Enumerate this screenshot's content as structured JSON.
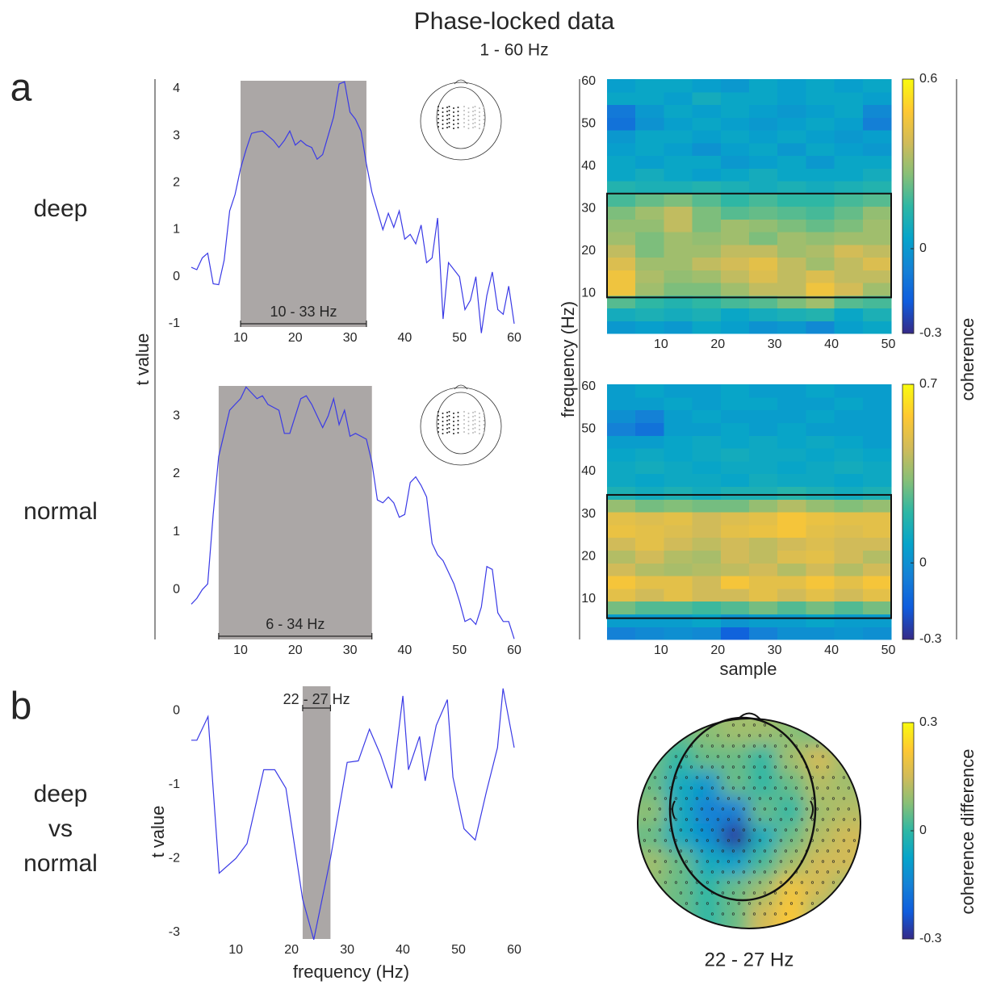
{
  "title": "Phase-locked data",
  "subtitle": "1 - 60 Hz",
  "panel_labels": [
    "a",
    "b"
  ],
  "row_labels": [
    "deep",
    "normal"
  ],
  "comparison_label": [
    "deep",
    "vs",
    "normal"
  ],
  "chart_data": [
    {
      "type": "line",
      "ylabel": "t value",
      "color": "#3a3ae6",
      "shade_color": "#aba7a6",
      "shade": [
        10,
        33
      ],
      "shade_label": "10 - 33 Hz",
      "xlim": [
        1,
        60
      ],
      "xticks": [
        10,
        20,
        30,
        40,
        50,
        60
      ],
      "ylim": [
        -1.07,
        4.17
      ],
      "yticks": [
        -1,
        0,
        1,
        2,
        3,
        4
      ],
      "x": [
        1,
        2,
        3,
        4,
        5,
        6,
        7,
        8,
        9,
        10,
        11,
        12,
        13,
        14,
        15,
        16,
        17,
        18,
        19,
        20,
        21,
        22,
        23,
        24,
        25,
        26,
        27,
        28,
        29,
        30,
        31,
        32,
        33,
        34,
        35,
        36,
        37,
        38,
        39,
        40,
        41,
        42,
        43,
        44,
        45,
        46,
        47,
        48,
        49,
        50,
        51,
        52,
        53,
        54,
        55,
        56,
        57,
        58,
        59,
        60
      ],
      "values": [
        0.2,
        0.15,
        0.4,
        0.5,
        -0.15,
        -0.17,
        0.35,
        1.4,
        1.75,
        2.3,
        2.7,
        3.05,
        3.08,
        3.1,
        3.0,
        2.9,
        2.75,
        2.9,
        3.1,
        2.8,
        2.9,
        2.8,
        2.75,
        2.5,
        2.6,
        3.0,
        3.4,
        4.1,
        4.15,
        3.5,
        3.35,
        3.1,
        2.4,
        1.8,
        1.4,
        1.0,
        1.35,
        1.05,
        1.4,
        0.8,
        0.9,
        0.7,
        1.1,
        0.3,
        0.4,
        1.25,
        -0.9,
        0.3,
        0.15,
        0.0,
        -0.7,
        -0.5,
        0.0,
        -1.2,
        -0.4,
        0.1,
        -0.7,
        -0.8,
        -0.2,
        -1.0
      ]
    },
    {
      "type": "line",
      "color": "#3a3ae6",
      "shade_color": "#aba7a6",
      "shade": [
        6,
        34
      ],
      "shade_label": "6 - 34 Hz",
      "xlim": [
        1,
        60
      ],
      "xticks": [
        10,
        20,
        30,
        40,
        50,
        60
      ],
      "ylim": [
        -0.86,
        3.52
      ],
      "yticks": [
        0,
        1,
        2,
        3
      ],
      "x": [
        1,
        2,
        3,
        4,
        5,
        6,
        7,
        8,
        9,
        10,
        11,
        12,
        13,
        14,
        15,
        16,
        17,
        18,
        19,
        20,
        21,
        22,
        23,
        24,
        25,
        26,
        27,
        28,
        29,
        30,
        31,
        32,
        33,
        34,
        35,
        36,
        37,
        38,
        39,
        40,
        41,
        42,
        43,
        44,
        45,
        46,
        47,
        48,
        49,
        50,
        51,
        52,
        53,
        54,
        55,
        56,
        57,
        58,
        59,
        60
      ],
      "values": [
        -0.25,
        -0.15,
        0.0,
        0.1,
        1.3,
        2.3,
        2.7,
        3.1,
        3.2,
        3.3,
        3.5,
        3.4,
        3.3,
        3.35,
        3.2,
        3.15,
        3.1,
        2.7,
        2.7,
        3.0,
        3.3,
        3.35,
        3.2,
        3.0,
        2.8,
        3.0,
        3.3,
        2.85,
        3.1,
        2.65,
        2.7,
        2.65,
        2.6,
        2.2,
        1.55,
        1.5,
        1.6,
        1.5,
        1.25,
        1.3,
        1.85,
        1.95,
        1.8,
        1.6,
        0.8,
        0.6,
        0.5,
        0.3,
        0.1,
        -0.2,
        -0.55,
        -0.5,
        -0.6,
        -0.3,
        0.4,
        0.35,
        -0.4,
        -0.55,
        -0.55,
        -0.85
      ]
    },
    {
      "type": "heatmap",
      "ylabel": "frequency (Hz)",
      "clabel": "coherence",
      "colormap": [
        "#352a87",
        "#0f5cdd",
        "#1481d6",
        "#06a4ca",
        "#2eb7a4",
        "#87bf77",
        "#d1bb59",
        "#fec832",
        "#f9fb0e"
      ],
      "xlim": [
        0.5,
        50.5
      ],
      "xticks": [
        10,
        20,
        30,
        40,
        50
      ],
      "ylim": [
        0.5,
        60.5
      ],
      "yticks": [
        10,
        20,
        30,
        40,
        50,
        60
      ],
      "clim": [
        -0.3,
        0.6
      ],
      "cticks": [
        -0.3,
        0,
        0.6
      ],
      "box_xlim": [
        0.5,
        50.5
      ],
      "box_ylim": [
        9,
        33.5
      ],
      "x": [
        3,
        8,
        13,
        18,
        23,
        28,
        33,
        38,
        43,
        48
      ],
      "y": [
        2,
        5,
        8,
        11,
        14,
        17,
        20,
        23,
        26,
        29,
        32,
        35,
        38,
        41,
        44,
        47,
        50,
        53,
        56,
        59
      ],
      "values": [
        [
          0.0,
          0.02,
          0.0,
          0.05,
          0.02,
          -0.02,
          0.0,
          -0.05,
          0.02,
          0.05
        ],
        [
          0.08,
          0.1,
          0.08,
          0.1,
          0.05,
          0.08,
          0.1,
          0.12,
          0.05,
          0.1
        ],
        [
          0.2,
          0.15,
          0.12,
          0.15,
          0.18,
          0.2,
          0.25,
          0.3,
          0.2,
          0.18
        ],
        [
          0.45,
          0.3,
          0.25,
          0.25,
          0.3,
          0.35,
          0.35,
          0.45,
          0.38,
          0.3
        ],
        [
          0.45,
          0.32,
          0.28,
          0.3,
          0.35,
          0.4,
          0.35,
          0.4,
          0.35,
          0.35
        ],
        [
          0.4,
          0.3,
          0.3,
          0.35,
          0.38,
          0.42,
          0.35,
          0.3,
          0.35,
          0.4
        ],
        [
          0.35,
          0.25,
          0.3,
          0.3,
          0.35,
          0.35,
          0.3,
          0.32,
          0.38,
          0.35
        ],
        [
          0.3,
          0.25,
          0.3,
          0.28,
          0.3,
          0.25,
          0.3,
          0.28,
          0.3,
          0.3
        ],
        [
          0.28,
          0.28,
          0.35,
          0.25,
          0.3,
          0.28,
          0.25,
          0.22,
          0.25,
          0.3
        ],
        [
          0.25,
          0.3,
          0.35,
          0.25,
          0.2,
          0.22,
          0.2,
          0.18,
          0.22,
          0.28
        ],
        [
          0.18,
          0.22,
          0.25,
          0.2,
          0.15,
          0.18,
          0.15,
          0.15,
          0.18,
          0.2
        ],
        [
          0.12,
          0.1,
          0.1,
          0.12,
          0.1,
          0.08,
          0.1,
          0.08,
          0.1,
          0.12
        ],
        [
          0.05,
          0.08,
          0.05,
          0.02,
          0.05,
          0.08,
          0.05,
          0.05,
          0.05,
          0.08
        ],
        [
          0.05,
          0.02,
          0.05,
          0.05,
          0.0,
          0.02,
          0.05,
          0.0,
          0.05,
          0.05
        ],
        [
          0.02,
          0.05,
          0.02,
          -0.02,
          0.02,
          0.05,
          0.0,
          0.05,
          0.02,
          0.0
        ],
        [
          0.0,
          0.05,
          0.05,
          0.02,
          0.05,
          0.02,
          0.05,
          0.02,
          0.0,
          0.02
        ],
        [
          -0.12,
          -0.02,
          0.02,
          0.05,
          0.02,
          0.0,
          0.02,
          0.05,
          0.02,
          -0.08
        ],
        [
          -0.1,
          0.0,
          0.05,
          0.02,
          0.05,
          0.02,
          0.0,
          0.02,
          0.05,
          -0.05
        ],
        [
          0.05,
          0.05,
          0.02,
          0.08,
          0.05,
          0.05,
          0.02,
          0.05,
          0.05,
          0.02
        ],
        [
          0.02,
          0.05,
          0.05,
          0.02,
          0.0,
          0.05,
          0.02,
          0.05,
          0.02,
          0.05
        ]
      ]
    },
    {
      "type": "heatmap",
      "xlabel": "sample",
      "colormap": [
        "#352a87",
        "#0f5cdd",
        "#1481d6",
        "#06a4ca",
        "#2eb7a4",
        "#87bf77",
        "#d1bb59",
        "#fec832",
        "#f9fb0e"
      ],
      "xlim": [
        0.5,
        50.5
      ],
      "xticks": [
        10,
        20,
        30,
        40,
        50
      ],
      "ylim": [
        0.5,
        60.5
      ],
      "yticks": [
        10,
        20,
        30,
        40,
        50,
        60
      ],
      "clim": [
        -0.3,
        0.7
      ],
      "cticks": [
        -0.3,
        0,
        0.7
      ],
      "box_xlim": [
        0.5,
        50.5
      ],
      "box_ylim": [
        5.5,
        34.5
      ],
      "x": [
        3,
        8,
        13,
        18,
        23,
        28,
        33,
        38,
        43,
        48
      ],
      "y": [
        2,
        5,
        8,
        11,
        14,
        17,
        20,
        23,
        26,
        29,
        32,
        35,
        38,
        41,
        44,
        47,
        50,
        53,
        56,
        59
      ],
      "values": [
        [
          -0.05,
          -0.02,
          0.0,
          -0.02,
          -0.15,
          -0.05,
          0.0,
          0.0,
          0.02,
          0.0
        ],
        [
          0.05,
          0.05,
          0.05,
          0.08,
          0.02,
          0.05,
          0.05,
          0.08,
          0.05,
          0.05
        ],
        [
          0.3,
          0.25,
          0.25,
          0.22,
          0.25,
          0.3,
          0.25,
          0.3,
          0.25,
          0.3
        ],
        [
          0.5,
          0.45,
          0.5,
          0.45,
          0.45,
          0.5,
          0.45,
          0.5,
          0.45,
          0.5
        ],
        [
          0.55,
          0.5,
          0.5,
          0.45,
          0.55,
          0.5,
          0.5,
          0.55,
          0.5,
          0.55
        ],
        [
          0.45,
          0.4,
          0.38,
          0.4,
          0.42,
          0.45,
          0.4,
          0.45,
          0.4,
          0.45
        ],
        [
          0.4,
          0.45,
          0.4,
          0.38,
          0.45,
          0.42,
          0.48,
          0.5,
          0.45,
          0.4
        ],
        [
          0.45,
          0.5,
          0.45,
          0.42,
          0.45,
          0.42,
          0.45,
          0.48,
          0.45,
          0.45
        ],
        [
          0.52,
          0.5,
          0.48,
          0.45,
          0.5,
          0.52,
          0.55,
          0.5,
          0.48,
          0.5
        ],
        [
          0.5,
          0.48,
          0.5,
          0.45,
          0.48,
          0.5,
          0.55,
          0.52,
          0.5,
          0.5
        ],
        [
          0.35,
          0.3,
          0.32,
          0.3,
          0.3,
          0.35,
          0.4,
          0.35,
          0.32,
          0.35
        ],
        [
          0.15,
          0.12,
          0.15,
          0.12,
          0.15,
          0.15,
          0.18,
          0.15,
          0.12,
          0.15
        ],
        [
          0.1,
          0.08,
          0.1,
          0.1,
          0.08,
          0.12,
          0.1,
          0.1,
          0.08,
          0.1
        ],
        [
          0.1,
          0.12,
          0.1,
          0.08,
          0.1,
          0.1,
          0.08,
          0.1,
          0.12,
          0.1
        ],
        [
          0.08,
          0.1,
          0.08,
          0.1,
          0.12,
          0.1,
          0.1,
          0.08,
          0.1,
          0.08
        ],
        [
          0.05,
          0.05,
          0.08,
          0.1,
          0.08,
          0.1,
          0.08,
          0.1,
          0.08,
          0.05
        ],
        [
          -0.05,
          -0.1,
          0.05,
          0.05,
          0.08,
          0.05,
          0.08,
          0.05,
          0.05,
          0.05
        ],
        [
          0.0,
          -0.05,
          0.05,
          0.08,
          0.05,
          0.05,
          0.05,
          0.08,
          0.05,
          0.05
        ],
        [
          0.05,
          0.05,
          0.08,
          0.05,
          0.08,
          0.08,
          0.05,
          0.05,
          0.08,
          0.05
        ],
        [
          0.05,
          0.08,
          0.05,
          0.05,
          0.08,
          0.05,
          0.05,
          0.08,
          0.05,
          0.05
        ]
      ]
    },
    {
      "type": "line",
      "xlabel": "frequency (Hz)",
      "ylabel": "t value",
      "color": "#3a3ae6",
      "shade_color": "#aba7a6",
      "shade": [
        22,
        27
      ],
      "shade_label": "22 - 27 Hz",
      "xlim": [
        2,
        60
      ],
      "xticks": [
        10,
        20,
        30,
        40,
        50,
        60
      ],
      "ylim": [
        -3.09,
        0.33
      ],
      "yticks": [
        -3,
        -2,
        -1,
        0
      ],
      "x": [
        2,
        3,
        5,
        7,
        10,
        12,
        15,
        17,
        19,
        22,
        24,
        27,
        30,
        32,
        34,
        36,
        38,
        40,
        41,
        43,
        44,
        46,
        48,
        49,
        51,
        53,
        55,
        57,
        58,
        60
      ],
      "values": [
        -0.4,
        -0.4,
        -0.08,
        -2.2,
        -2.0,
        -1.8,
        -0.8,
        -0.8,
        -1.05,
        -2.55,
        -3.1,
        -2.0,
        -0.7,
        -0.68,
        -0.25,
        -0.6,
        -1.05,
        0.2,
        -0.8,
        -0.35,
        -0.95,
        -0.2,
        0.15,
        -0.9,
        -1.6,
        -1.75,
        -1.1,
        -0.5,
        0.3,
        -0.5
      ]
    },
    {
      "type": "topo",
      "title": "22 - 27 Hz",
      "clabel": "coherence difference",
      "colormap": [
        "#352a87",
        "#0f5cdd",
        "#1481d6",
        "#06a4ca",
        "#2eb7a4",
        "#87bf77",
        "#d1bb59",
        "#fec832",
        "#f9fb0e"
      ],
      "clim": [
        -0.3,
        0.3
      ],
      "cticks": [
        -0.3,
        0,
        0.3
      ],
      "values": [
        [
          0.05,
          0.05,
          0.08,
          0.1,
          0.1,
          0.08,
          0.05,
          0.05
        ],
        [
          0.05,
          0.0,
          0.05,
          0.05,
          0.0,
          0.1,
          0.15,
          0.1
        ],
        [
          0.05,
          -0.05,
          -0.1,
          0.05,
          0.0,
          0.05,
          0.12,
          0.1
        ],
        [
          0.08,
          -0.05,
          -0.15,
          -0.15,
          0.05,
          0.0,
          0.1,
          0.12
        ],
        [
          0.05,
          -0.05,
          -0.12,
          -0.28,
          -0.05,
          0.05,
          0.12,
          0.15
        ],
        [
          0.1,
          0.05,
          -0.05,
          -0.08,
          0.02,
          0.1,
          0.15,
          0.15
        ],
        [
          0.08,
          0.05,
          0.0,
          0.05,
          0.1,
          0.2,
          0.15,
          0.1
        ],
        [
          0.05,
          0.05,
          0.0,
          0.05,
          0.15,
          0.22,
          0.1,
          0.05
        ]
      ]
    }
  ]
}
